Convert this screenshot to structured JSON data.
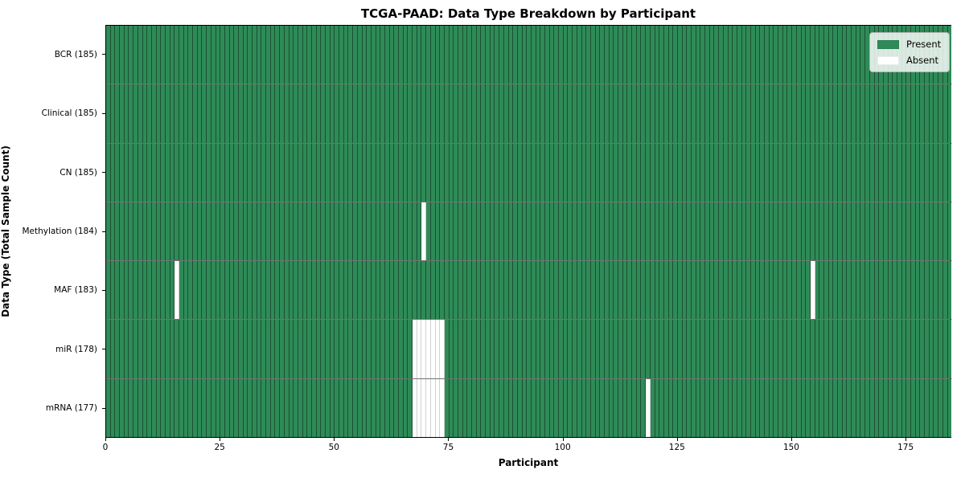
{
  "chart_data": {
    "type": "heatmap",
    "title": "TCGA-PAAD: Data Type Breakdown by Participant",
    "xlabel": "Participant",
    "ylabel": "Data Type (Total Sample Count)",
    "x_ticks": [
      0,
      25,
      50,
      75,
      100,
      125,
      150,
      175
    ],
    "xlim": [
      0,
      185
    ],
    "n_participants": 185,
    "grid": false,
    "legend_position": "upper right",
    "colors": {
      "present": "#2e8b57",
      "absent": "#ffffff"
    },
    "legend": [
      {
        "label": "Present",
        "color": "#2e8b57"
      },
      {
        "label": "Absent",
        "color": "#ffffff"
      }
    ],
    "rows": [
      {
        "label": "BCR (185)",
        "total": 185,
        "absent_participants": []
      },
      {
        "label": "Clinical (185)",
        "total": 185,
        "absent_participants": []
      },
      {
        "label": "CN (185)",
        "total": 185,
        "absent_participants": []
      },
      {
        "label": "Methylation (184)",
        "total": 184,
        "absent_participants": [
          69
        ]
      },
      {
        "label": "MAF (183)",
        "total": 183,
        "absent_participants": [
          15,
          154
        ]
      },
      {
        "label": "miR (178)",
        "total": 178,
        "absent_participants": [
          67,
          68,
          69,
          70,
          71,
          72,
          73
        ]
      },
      {
        "label": "mRNA (177)",
        "total": 177,
        "absent_participants": [
          67,
          68,
          69,
          70,
          71,
          72,
          73,
          118
        ]
      }
    ]
  }
}
